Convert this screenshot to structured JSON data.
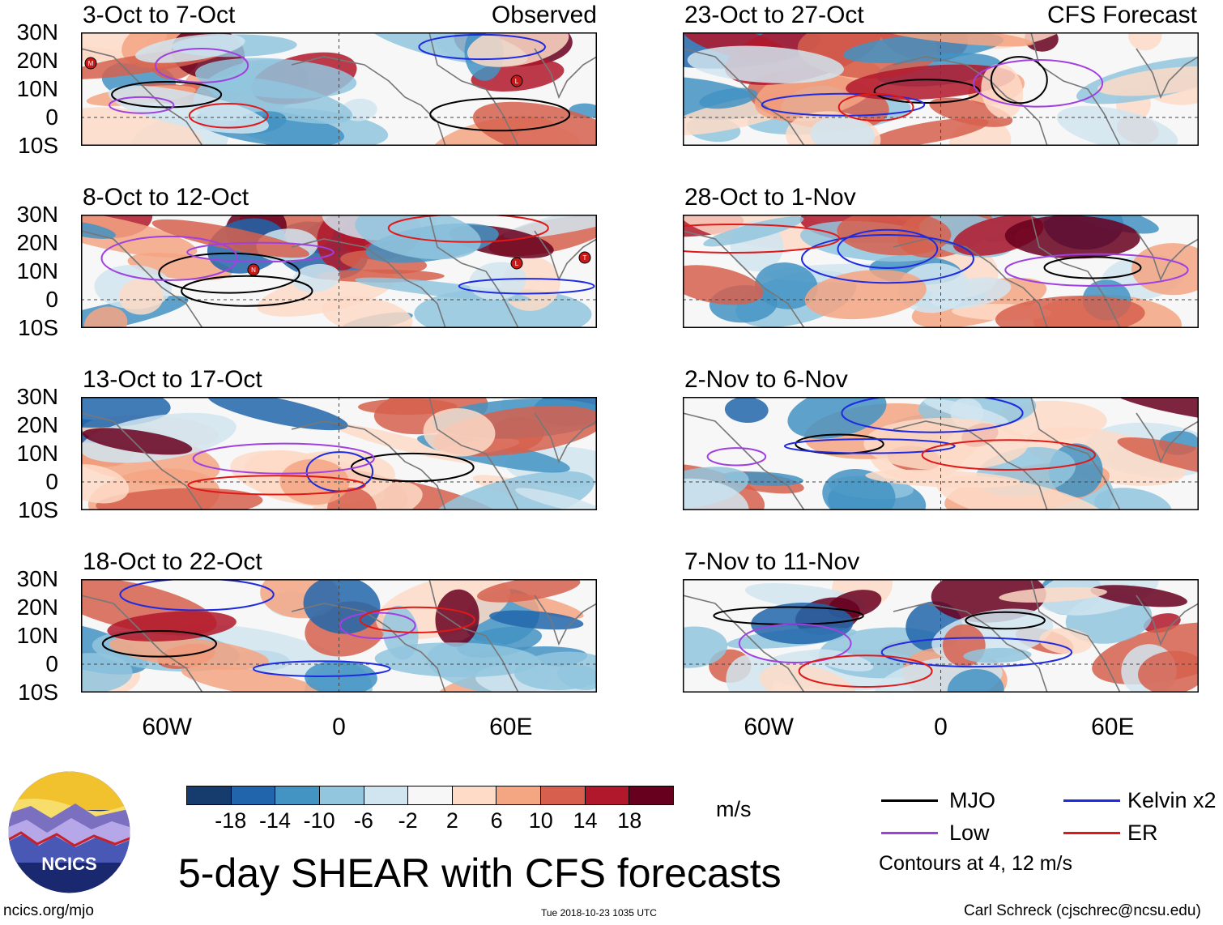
{
  "figure": {
    "title": "5-day SHEAR with CFS forecasts",
    "units": "m/s",
    "website": "ncics.org/mjo",
    "timestamp": "Tue 2018-10-23 1035 UTC",
    "author": "Carl Schreck (cjschrec@ncsu.edu)",
    "logo_text": "NCICS",
    "contours_note": "Contours at 4, 12 m/s"
  },
  "columns": {
    "left_tag": "Observed",
    "right_tag": "CFS Forecast"
  },
  "panels": {
    "left": [
      "3-Oct to 7-Oct",
      "8-Oct to 12-Oct",
      "13-Oct to 17-Oct",
      "18-Oct to 22-Oct"
    ],
    "right": [
      "23-Oct to 27-Oct",
      "28-Oct to 1-Nov",
      "2-Nov to 6-Nov",
      "7-Nov to 11-Nov"
    ]
  },
  "lat_labels": [
    "30N",
    "20N",
    "10N",
    "0",
    "10S"
  ],
  "lon_labels": [
    "60W",
    "0",
    "60E"
  ],
  "colorbar": {
    "ticks": [
      "-18",
      "-14",
      "-10",
      "-6",
      "-2",
      "2",
      "6",
      "10",
      "14",
      "18"
    ],
    "colors": [
      "#163c6e",
      "#2166ac",
      "#4393c3",
      "#92c5de",
      "#d1e5f0",
      "#f7f7f7",
      "#fddbc7",
      "#f4a582",
      "#d6604d",
      "#b2182b",
      "#67001f"
    ]
  },
  "legend": {
    "mjo": {
      "label": "MJO",
      "color": "#000000"
    },
    "kelvin": {
      "label": "Kelvin x2",
      "color": "#1f2be0"
    },
    "low": {
      "label": "Low",
      "color": "#a040e0"
    },
    "er": {
      "label": "ER",
      "color": "#e01818"
    }
  },
  "storm_markers": [
    "M",
    "L",
    "N",
    "L",
    "T"
  ]
}
